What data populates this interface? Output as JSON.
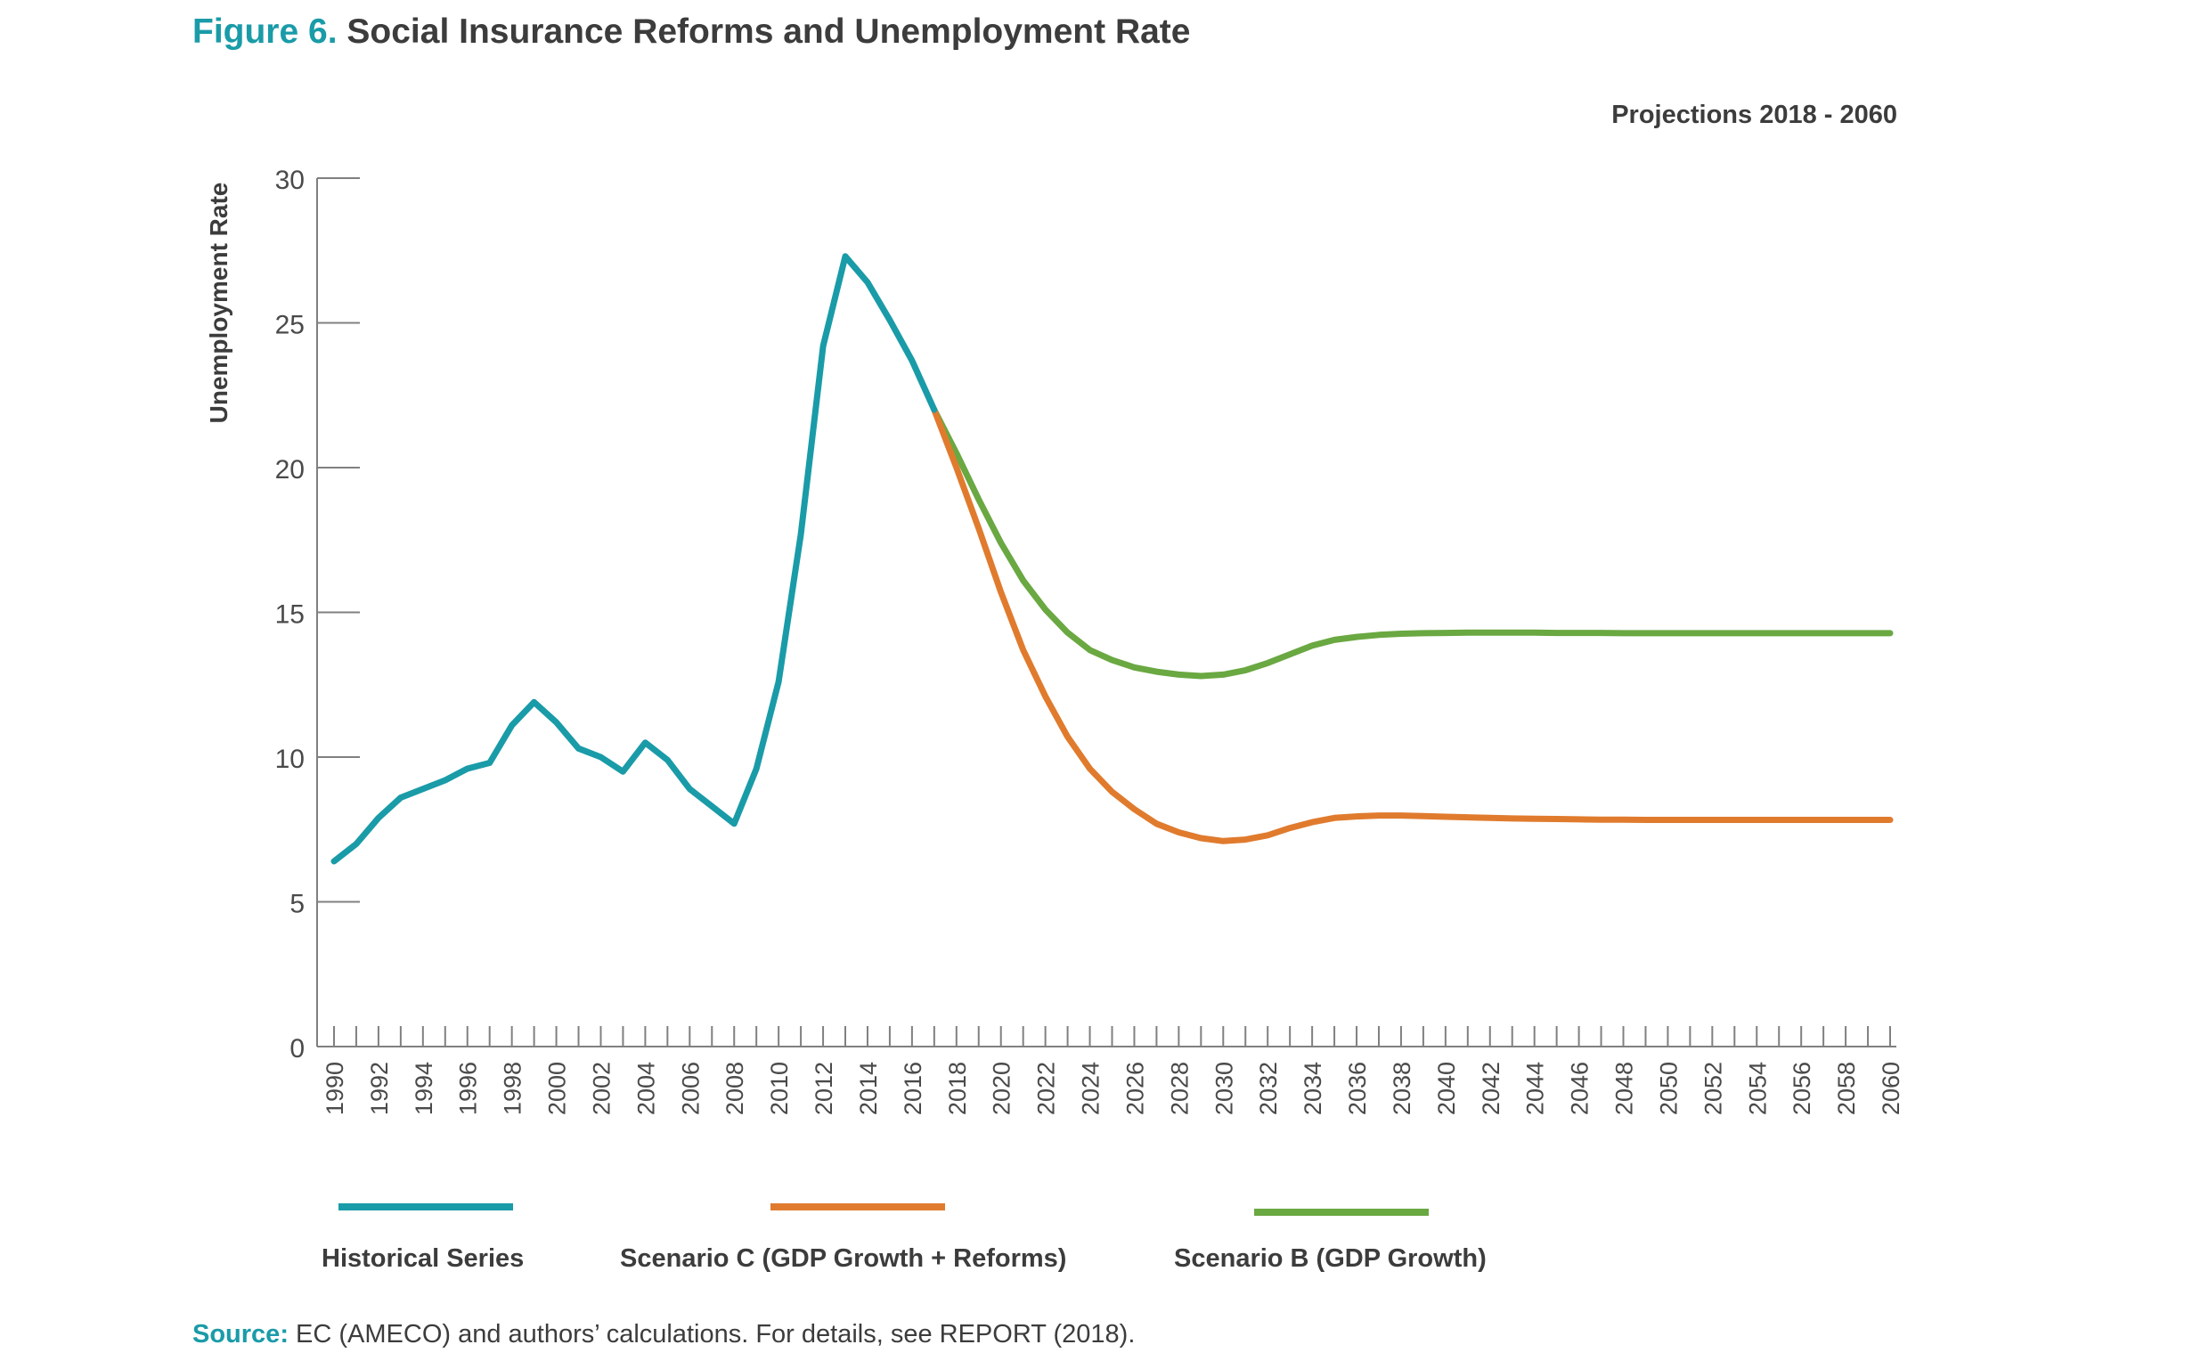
{
  "figure": {
    "number": "Figure 6.",
    "title": "Social Insurance Reforms and Unemployment Rate"
  },
  "source": {
    "label": "Source:",
    "text": " EC (AMECO) and authors’ calculations. For details, see REPORT (2018)."
  },
  "chart_data": {
    "type": "line",
    "subtitle": "Projections 2018 - 2060",
    "ylabel": "Unemployment Rate",
    "xlabel": "",
    "ylim": [
      0,
      30
    ],
    "xlim": [
      1990,
      2060
    ],
    "yticks": [
      0,
      5,
      10,
      15,
      20,
      25,
      30
    ],
    "xtick_labels": [
      "1990",
      "1992",
      "1994",
      "1996",
      "1998",
      "2000",
      "2002",
      "2004",
      "2006",
      "2008",
      "2010",
      "2012",
      "2014",
      "2016",
      "2018",
      "2020",
      "2022",
      "2024",
      "2026",
      "2028",
      "2030",
      "2032",
      "2034",
      "2036",
      "2038",
      "2040",
      "2042",
      "2044",
      "2046",
      "2048",
      "2050",
      "2052",
      "2054",
      "2056",
      "2058",
      "2060"
    ],
    "grid": false,
    "legend_position": "bottom",
    "series": [
      {
        "name": "Historical Series",
        "color": "#1a9ba8",
        "x": [
          1990,
          1991,
          1992,
          1993,
          1994,
          1995,
          1996,
          1997,
          1998,
          1999,
          2000,
          2001,
          2002,
          2003,
          2004,
          2005,
          2006,
          2007,
          2008,
          2009,
          2010,
          2011,
          2012,
          2013,
          2014,
          2015,
          2016,
          2017
        ],
        "y": [
          6.4,
          7.0,
          7.9,
          8.6,
          8.9,
          9.2,
          9.6,
          9.8,
          11.1,
          11.9,
          11.2,
          10.3,
          10.0,
          9.5,
          10.5,
          9.9,
          8.9,
          8.3,
          7.7,
          9.6,
          12.6,
          17.7,
          24.2,
          27.3,
          26.4,
          25.1,
          23.7,
          22.0
        ]
      },
      {
        "name": "Scenario C (GDP Growth + Reforms)",
        "color": "#e07b2e",
        "x": [
          2017,
          2018,
          2019,
          2020,
          2021,
          2022,
          2023,
          2024,
          2025,
          2026,
          2027,
          2028,
          2029,
          2030,
          2031,
          2032,
          2033,
          2034,
          2035,
          2036,
          2037,
          2038,
          2039,
          2040,
          2041,
          2042,
          2043,
          2044,
          2045,
          2046,
          2047,
          2048,
          2049,
          2050,
          2051,
          2052,
          2053,
          2054,
          2055,
          2056,
          2057,
          2058,
          2059,
          2060
        ],
        "y": [
          22.0,
          20.0,
          17.9,
          15.7,
          13.7,
          12.1,
          10.7,
          9.6,
          8.8,
          8.2,
          7.7,
          7.4,
          7.2,
          7.1,
          7.15,
          7.3,
          7.55,
          7.75,
          7.9,
          7.95,
          7.98,
          7.98,
          7.96,
          7.94,
          7.92,
          7.9,
          7.88,
          7.87,
          7.86,
          7.85,
          7.84,
          7.84,
          7.83,
          7.83,
          7.83,
          7.83,
          7.83,
          7.83,
          7.83,
          7.83,
          7.83,
          7.83,
          7.83,
          7.83
        ]
      },
      {
        "name": "Scenario B (GDP Growth)",
        "color": "#6aa842",
        "x": [
          2017,
          2018,
          2019,
          2020,
          2021,
          2022,
          2023,
          2024,
          2025,
          2026,
          2027,
          2028,
          2029,
          2030,
          2031,
          2032,
          2033,
          2034,
          2035,
          2036,
          2037,
          2038,
          2039,
          2040,
          2041,
          2042,
          2043,
          2044,
          2045,
          2046,
          2047,
          2048,
          2049,
          2050,
          2051,
          2052,
          2053,
          2054,
          2055,
          2056,
          2057,
          2058,
          2059,
          2060
        ],
        "y": [
          22.0,
          20.5,
          18.9,
          17.4,
          16.1,
          15.1,
          14.3,
          13.7,
          13.35,
          13.1,
          12.95,
          12.85,
          12.8,
          12.85,
          13.0,
          13.25,
          13.55,
          13.85,
          14.05,
          14.15,
          14.22,
          14.26,
          14.28,
          14.29,
          14.3,
          14.3,
          14.3,
          14.3,
          14.29,
          14.29,
          14.29,
          14.28,
          14.28,
          14.28,
          14.28,
          14.28,
          14.28,
          14.28,
          14.28,
          14.28,
          14.28,
          14.28,
          14.28,
          14.28
        ]
      }
    ]
  }
}
